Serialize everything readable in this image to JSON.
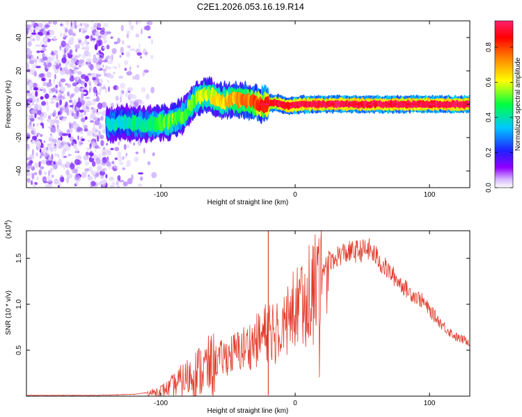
{
  "title": "C2E1.2026.053.16.19.R14",
  "chart_data": [
    {
      "type": "heatmap",
      "title": "C2E1.2026.053.16.19.R14",
      "xlabel": "Height of straight line (km)",
      "ylabel": "Frequency (Hz)",
      "xlim": [
        -200,
        130
      ],
      "ylim": [
        -50,
        50
      ],
      "xticks": [
        -100,
        0,
        100
      ],
      "xtick_labels": [
        "-100",
        "0",
        "100"
      ],
      "yticks": [
        -40,
        -20,
        0,
        20,
        40
      ],
      "ytick_labels": [
        "-40",
        "-20",
        "0",
        "20",
        "40"
      ],
      "colorbar": {
        "label": "Normalized spectral amplitude",
        "range": [
          0,
          0.95
        ],
        "ticks": [
          0.0,
          0.2,
          0.4,
          0.6,
          0.8
        ],
        "tick_labels": [
          "0.0",
          "0.2",
          "0.4",
          "0.6",
          "0.8"
        ],
        "colormap": [
          "#ffffff",
          "#9000ff",
          "#2020ff",
          "#00d0ff",
          "#00ff40",
          "#ffff00",
          "#ff8000",
          "#ff0000",
          "#ff2070"
        ]
      },
      "ridge": {
        "x": [
          -140,
          -125,
          -110,
          -100,
          -90,
          -82,
          -75,
          -65,
          -55,
          -45,
          -35,
          -25,
          -15,
          -5,
          5,
          20,
          60,
          100,
          130
        ],
        "y": [
          -12,
          -11,
          -12,
          -11,
          -10,
          -6,
          3,
          6,
          2,
          3,
          2,
          0,
          1,
          -1,
          0,
          0,
          0,
          0,
          0
        ],
        "amplitude": [
          0.4,
          0.42,
          0.45,
          0.5,
          0.55,
          0.5,
          0.55,
          0.6,
          0.65,
          0.7,
          0.75,
          0.85,
          0.9,
          0.9,
          0.95,
          0.95,
          0.95,
          0.95,
          0.95
        ]
      },
      "noise_region": {
        "x_range": [
          -200,
          -105
        ],
        "y_range": [
          -50,
          50
        ]
      }
    },
    {
      "type": "line",
      "xlabel": "Height of straight line (km)",
      "ylabel": "SNR (10 * v/v)",
      "scale_note": "(x10",
      "scale_exponent": "4",
      "scale_close": ")",
      "xlim": [
        -200,
        130
      ],
      "ylim": [
        0,
        1.8
      ],
      "xticks": [
        -100,
        0,
        100
      ],
      "xtick_labels": [
        "-100",
        "0",
        "100"
      ],
      "yticks": [
        0.5,
        1.0,
        1.5
      ],
      "ytick_labels": [
        "0.5",
        "1.0",
        "1.5"
      ],
      "series": [
        {
          "name": "SNR",
          "color": "#e03a2a",
          "envelope_x": [
            -200,
            -150,
            -120,
            -105,
            -95,
            -85,
            -75,
            -65,
            -55,
            -45,
            -35,
            -25,
            -20,
            -15,
            -5,
            5,
            15,
            25,
            35,
            45,
            55,
            60,
            65,
            75,
            85,
            95,
            100,
            110,
            120,
            130
          ],
          "envelope_y": [
            0.01,
            0.01,
            0.02,
            0.05,
            0.1,
            0.2,
            0.3,
            0.38,
            0.45,
            0.52,
            0.6,
            0.7,
            0.8,
            0.85,
            0.95,
            1.15,
            1.35,
            1.5,
            1.58,
            1.6,
            1.62,
            1.55,
            1.45,
            1.3,
            1.15,
            1.05,
            0.95,
            0.78,
            0.65,
            0.6
          ],
          "spike": {
            "x": -20,
            "y": 1.8
          }
        }
      ]
    }
  ]
}
